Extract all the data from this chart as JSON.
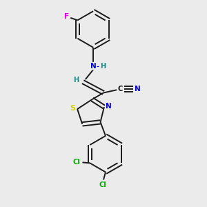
{
  "background_color": "#ebebeb",
  "bond_color": "#1a1a1a",
  "atom_colors": {
    "N": "#0000e0",
    "S": "#d4d400",
    "F": "#e000e0",
    "Cl": "#00aa00",
    "H_label": "#1a8a8a",
    "C": "#1a1a1a"
  },
  "figsize": [
    3.0,
    3.0
  ],
  "dpi": 100,
  "lw": 1.4,
  "sep": 0.09
}
